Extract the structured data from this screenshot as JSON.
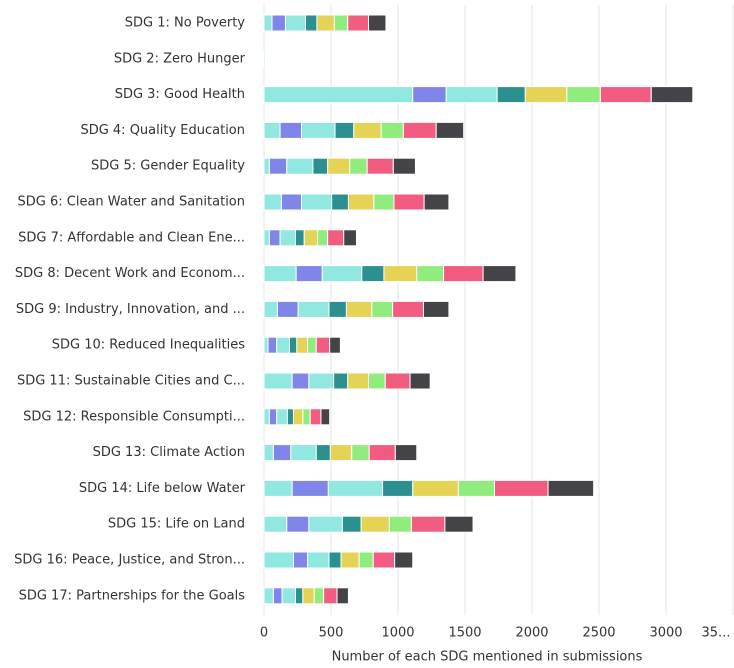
{
  "chart_data": {
    "type": "bar",
    "orientation": "horizontal",
    "stacked": true,
    "x_label": "Number of each SDG mentioned in submissions",
    "categories": [
      "SDG 1: No Poverty",
      "SDG 2: Zero Hunger",
      "SDG 3: Good Health",
      "SDG 4: Quality Education",
      "SDG 5: Gender Equality",
      "SDG 6: Clean Water and Sanitation",
      "SDG 7: Affordable and Clean Ene...",
      "SDG 8: Decent Work and Econom...",
      "SDG 9: Industry, Innovation, and ...",
      "SDG 10: Reduced Inequalities",
      "SDG 11: Sustainable Cities and C...",
      "SDG 12: Responsible Consumpti...",
      "SDG 13: Climate Action",
      "SDG 14: Life below Water",
      "SDG 15: Life on Land",
      "SDG 16: Peace, Justice, and Stron...",
      "SDG 17: Partnerships for the Goals"
    ],
    "series": [
      {
        "color": "#91e8e1",
        "values": [
          60,
          10,
          1110,
          120,
          40,
          130,
          40,
          240,
          100,
          30,
          210,
          40,
          70,
          210,
          170,
          220,
          70
        ]
      },
      {
        "color": "#8085e9",
        "values": [
          100,
          0,
          250,
          160,
          130,
          150,
          80,
          195,
          155,
          65,
          125,
          55,
          130,
          270,
          165,
          105,
          65
        ]
      },
      {
        "color": "#91e8e1",
        "values": [
          150,
          0,
          380,
          250,
          195,
          225,
          115,
          295,
          230,
          95,
          185,
          80,
          190,
          405,
          250,
          160,
          100
        ]
      },
      {
        "color": "#2b908f",
        "values": [
          85,
          0,
          210,
          140,
          110,
          125,
          65,
          165,
          130,
          55,
          105,
          45,
          105,
          225,
          140,
          90,
          55
        ]
      },
      {
        "color": "#e4d354",
        "values": [
          130,
          0,
          310,
          205,
          165,
          190,
          100,
          245,
          190,
          80,
          155,
          70,
          160,
          340,
          210,
          135,
          85
        ]
      },
      {
        "color": "#90ed7d",
        "values": [
          100,
          0,
          250,
          165,
          130,
          150,
          75,
          200,
          155,
          65,
          125,
          55,
          130,
          270,
          165,
          105,
          70
        ]
      },
      {
        "color": "#f15c80",
        "values": [
          155,
          0,
          380,
          245,
          195,
          225,
          120,
          295,
          230,
          100,
          185,
          80,
          195,
          400,
          250,
          160,
          100
        ]
      },
      {
        "color": "#434348",
        "values": [
          130,
          0,
          310,
          205,
          165,
          185,
          95,
          245,
          190,
          80,
          150,
          65,
          160,
          340,
          210,
          135,
          85
        ]
      }
    ],
    "xlim": [
      0,
      3500
    ],
    "xticks": [
      0,
      500,
      1000,
      1500,
      2000,
      2500,
      3000,
      {
        "value": 3500,
        "label": "35..."
      }
    ],
    "grid": true
  }
}
